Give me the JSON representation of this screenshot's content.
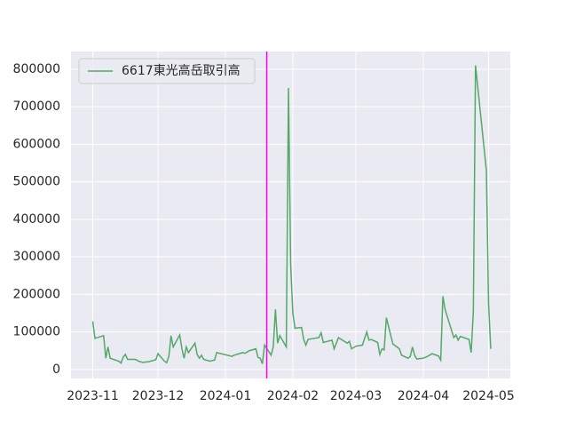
{
  "chart_data": {
    "type": "line",
    "x": [
      "2023-11-01",
      "2023-11-02",
      "2023-11-06",
      "2023-11-07",
      "2023-11-08",
      "2023-11-09",
      "2023-11-10",
      "2023-11-13",
      "2023-11-14",
      "2023-11-15",
      "2023-11-16",
      "2023-11-17",
      "2023-11-20",
      "2023-11-21",
      "2023-11-22",
      "2023-11-24",
      "2023-11-27",
      "2023-11-30",
      "2023-12-01",
      "2023-12-04",
      "2023-12-05",
      "2023-12-06",
      "2023-12-07",
      "2023-12-08",
      "2023-12-11",
      "2023-12-12",
      "2023-12-13",
      "2023-12-14",
      "2023-12-15",
      "2023-12-18",
      "2023-12-19",
      "2023-12-20",
      "2023-12-21",
      "2023-12-22",
      "2023-12-25",
      "2023-12-26",
      "2023-12-27",
      "2023-12-28",
      "2024-01-04",
      "2024-01-05",
      "2024-01-09",
      "2024-01-10",
      "2024-01-12",
      "2024-01-15",
      "2024-01-16",
      "2024-01-17",
      "2024-01-18",
      "2024-01-19",
      "2024-01-22",
      "2024-01-23",
      "2024-01-24",
      "2024-01-25",
      "2024-01-26",
      "2024-01-29",
      "2024-01-30",
      "2024-01-31",
      "2024-02-01",
      "2024-02-02",
      "2024-02-05",
      "2024-02-06",
      "2024-02-07",
      "2024-02-08",
      "2024-02-13",
      "2024-02-14",
      "2024-02-15",
      "2024-02-19",
      "2024-02-20",
      "2024-02-21",
      "2024-02-22",
      "2024-02-26",
      "2024-02-27",
      "2024-02-28",
      "2024-03-01",
      "2024-03-04",
      "2024-03-06",
      "2024-03-07",
      "2024-03-08",
      "2024-03-11",
      "2024-03-12",
      "2024-03-13",
      "2024-03-14",
      "2024-03-15",
      "2024-03-18",
      "2024-03-21",
      "2024-03-22",
      "2024-03-25",
      "2024-03-26",
      "2024-03-27",
      "2024-03-28",
      "2024-03-29",
      "2024-04-01",
      "2024-04-03",
      "2024-04-05",
      "2024-04-08",
      "2024-04-09",
      "2024-04-10",
      "2024-04-11",
      "2024-04-15",
      "2024-04-16",
      "2024-04-17",
      "2024-04-18",
      "2024-04-22",
      "2024-04-23",
      "2024-04-24",
      "2024-04-25",
      "2024-04-30",
      "2024-05-01",
      "2024-05-02"
    ],
    "series": [
      {
        "name": "6617東光高岳取引高",
        "color": "#55a868",
        "values": [
          128000,
          83000,
          90000,
          30000,
          60000,
          30000,
          28000,
          22000,
          17000,
          33000,
          40000,
          27000,
          27000,
          26000,
          22000,
          19000,
          21000,
          26000,
          42000,
          22000,
          18000,
          35000,
          90000,
          60000,
          92000,
          55000,
          30000,
          60000,
          45000,
          70000,
          40000,
          30000,
          38000,
          27000,
          22000,
          24000,
          25000,
          45000,
          35000,
          38000,
          45000,
          43000,
          50000,
          55000,
          32000,
          30000,
          15000,
          65000,
          38000,
          60000,
          160000,
          70000,
          90000,
          60000,
          750000,
          280000,
          150000,
          110000,
          112000,
          80000,
          65000,
          80000,
          85000,
          98000,
          72000,
          78000,
          55000,
          70000,
          85000,
          70000,
          75000,
          55000,
          62000,
          65000,
          100000,
          78000,
          80000,
          72000,
          40000,
          55000,
          52000,
          138000,
          68000,
          55000,
          38000,
          30000,
          35000,
          60000,
          38000,
          28000,
          30000,
          35000,
          42000,
          36000,
          25000,
          195000,
          160000,
          85000,
          92000,
          78000,
          88000,
          80000,
          45000,
          155000,
          810000,
          530000,
          175000,
          55000
        ]
      }
    ],
    "xlim": [
      "2023-10-22",
      "2024-05-11"
    ],
    "xticks": [
      {
        "value": "2023-11-01",
        "label": "2023-11"
      },
      {
        "value": "2023-12-01",
        "label": "2023-12"
      },
      {
        "value": "2024-01-01",
        "label": "2024-01"
      },
      {
        "value": "2024-02-01",
        "label": "2024-02"
      },
      {
        "value": "2024-03-01",
        "label": "2024-03"
      },
      {
        "value": "2024-04-01",
        "label": "2024-04"
      },
      {
        "value": "2024-05-01",
        "label": "2024-05"
      }
    ],
    "ylim": [
      -24000,
      847000
    ],
    "yticks": [
      0,
      100000,
      200000,
      300000,
      400000,
      500000,
      600000,
      700000,
      800000
    ],
    "vline": {
      "x": "2024-01-20",
      "color": "#ff00ff"
    },
    "grid": true,
    "legend": "upper left"
  }
}
